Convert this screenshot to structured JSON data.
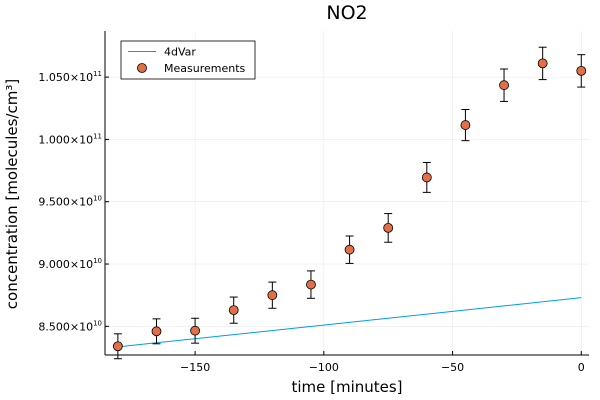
{
  "chart_data": {
    "type": "scatter",
    "title": "NO2",
    "xlabel": "time [minutes]",
    "ylabel": "concentration [molecules/cm³]",
    "xlim": [
      -185,
      3
    ],
    "ylim": [
      82700000000.0,
      108700000000.0
    ],
    "grid": true,
    "legend_position": "top-left",
    "x_ticks": [
      -150,
      -100,
      -50,
      0
    ],
    "x_tick_labels": [
      "−150",
      "−100",
      "−50",
      "0"
    ],
    "y_ticks": [
      85000000000.0,
      90000000000.0,
      95000000000.0,
      100000000000.0,
      105000000000.0
    ],
    "y_tick_labels": [
      {
        "mantissa": "8.500×10",
        "exponent": "10"
      },
      {
        "mantissa": "9.000×10",
        "exponent": "10"
      },
      {
        "mantissa": "9.500×10",
        "exponent": "10"
      },
      {
        "mantissa": "1.000×10",
        "exponent": "11"
      },
      {
        "mantissa": "1.050×10",
        "exponent": "11"
      }
    ],
    "series": [
      {
        "name": "4dVar",
        "kind": "line",
        "color": "#009AFA",
        "x": [
          -180,
          0
        ],
        "y": [
          83350000000.0,
          87300000000.0
        ]
      },
      {
        "name": "Measurements",
        "kind": "scatter_errorbar",
        "color": "#E26F46",
        "x": [
          -180,
          -165,
          -150,
          -135,
          -120,
          -105,
          -90,
          -75,
          -60,
          -45,
          -30,
          -15,
          0
        ],
        "y": [
          83400000000.0,
          84600000000.0,
          84650000000.0,
          86300000000.0,
          87500000000.0,
          88350000000.0,
          91150000000.0,
          92900000000.0,
          96950000000.0,
          101150000000.0,
          104350000000.0,
          106100000000.0,
          105500000000.0
        ],
        "err": [
          1000000000.0,
          1000000000.0,
          1000000000.0,
          1050000000.0,
          1050000000.0,
          1100000000.0,
          1100000000.0,
          1150000000.0,
          1200000000.0,
          1250000000.0,
          1300000000.0,
          1300000000.0,
          1300000000.0
        ]
      }
    ]
  }
}
